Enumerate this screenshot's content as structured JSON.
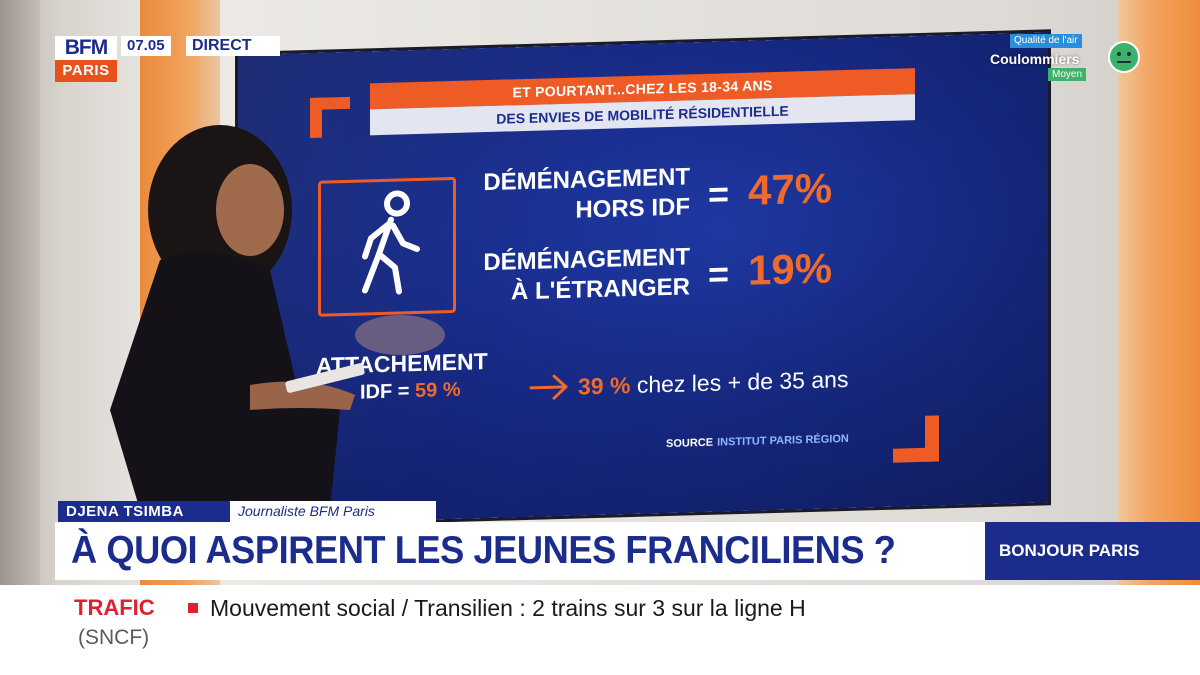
{
  "channel": {
    "logo_top": "BFM",
    "logo_bottom": "PARIS",
    "time": "07.05",
    "live_label": "DIRECT",
    "colors": {
      "navy": "#1b2c8c",
      "orange": "#e8501c"
    }
  },
  "air_quality": {
    "title": "Qualité de l'air",
    "city": "Coulommiers",
    "level": "Moyen",
    "icon": "neutral-face-icon"
  },
  "screen": {
    "banner_title": "ET POURTANT...CHEZ LES 18-34 ANS",
    "banner_subtitle": "DES ENVIES DE MOBILITÉ RÉSIDENTIELLE",
    "icon": "walking-person-icon",
    "stats": [
      {
        "label_line1": "DÉMÉNAGEMENT",
        "label_line2": "HORS IDF",
        "equals": "=",
        "value": "47%"
      },
      {
        "label_line1": "DÉMÉNAGEMENT",
        "label_line2": "À L'ÉTRANGER",
        "equals": "=",
        "value": "19%"
      }
    ],
    "attachment": {
      "label": "ATTACHEMENT",
      "prefix": "IDF =",
      "value": "59 %",
      "compare_value": "39 %",
      "compare_text": "chez les + de 35 ans"
    },
    "source_label": "SOURCE",
    "source_value": "INSTITUT PARIS RÉGION"
  },
  "lower_third": {
    "speaker_name": "DJENA TSIMBA",
    "speaker_role": "Journaliste BFM Paris",
    "headline": "À QUOI ASPIRENT LES JEUNES FRANCILIENS ?",
    "show_name": "BONJOUR PARIS"
  },
  "ticker": {
    "category": "TRAFIC",
    "text": "Mouvement social / Transilien : 2 trains sur 3 sur la ligne H",
    "source": "(SNCF)"
  }
}
